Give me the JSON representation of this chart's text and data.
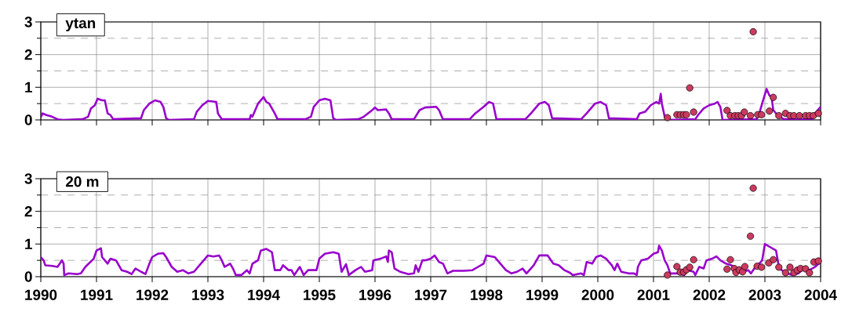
{
  "chart_data": [
    {
      "type": "line",
      "title": "ytan",
      "xlim": [
        1990,
        2004
      ],
      "xticks": [
        1990,
        1991,
        1992,
        1993,
        1994,
        1995,
        1996,
        1997,
        1998,
        1999,
        2000,
        2001,
        2002,
        2003,
        2004
      ],
      "ylim": [
        0,
        3
      ],
      "yticks": [
        0,
        {
          "value": 0.5,
          "label": null
        },
        1,
        {
          "value": 1.5,
          "label": null
        },
        2,
        {
          "value": 2.5,
          "label": null
        },
        3
      ],
      "grid": true,
      "tick_labels": "y",
      "series": [
        {
          "type": "line",
          "color": "#9900cc",
          "line_style": "solid",
          "marker": "none",
          "x": [
            1990.0,
            1990.03,
            1990.1,
            1990.2,
            1990.3,
            1990.4,
            1990.75,
            1990.85,
            1990.9,
            1990.97,
            1991.02,
            1991.1,
            1991.15,
            1991.2,
            1991.25,
            1991.3,
            1991.8,
            1991.85,
            1991.95,
            1992.05,
            1992.15,
            1992.2,
            1992.25,
            1992.3,
            1992.75,
            1992.8,
            1992.9,
            1993.0,
            1993.15,
            1993.18,
            1993.25,
            1993.75,
            1993.77,
            1993.8,
            1993.9,
            1994.0,
            1994.05,
            1994.1,
            1994.2,
            1994.25,
            1994.75,
            1994.85,
            1994.9,
            1995.0,
            1995.1,
            1995.2,
            1995.25,
            1995.3,
            1995.7,
            1995.8,
            1995.95,
            1996.0,
            1996.05,
            1996.2,
            1996.25,
            1996.3,
            1996.7,
            1996.8,
            1996.9,
            1997.1,
            1997.15,
            1997.22,
            1997.7,
            1997.8,
            1997.95,
            1998.05,
            1998.12,
            1998.18,
            1998.7,
            1998.8,
            1998.95,
            1999.05,
            1999.12,
            1999.18,
            1999.7,
            1999.8,
            1999.95,
            2000.05,
            2000.15,
            2000.2,
            2000.7,
            2000.75,
            2000.85,
            2000.95,
            2001.05,
            2001.1,
            2001.13,
            2001.15,
            2001.2,
            2001.25,
            2001.75,
            2001.8,
            2001.9,
            2002.0,
            2002.1,
            2002.15,
            2002.2,
            2002.24,
            2002.85,
            2002.9,
            2002.95,
            2003.03,
            2003.08,
            2003.12,
            2003.15,
            2003.25,
            2003.35,
            2003.85,
            2003.9,
            2004.0
          ],
          "values": [
            0.08,
            0.2,
            0.15,
            0.1,
            0.02,
            0,
            0.02,
            0.1,
            0.35,
            0.45,
            0.65,
            0.6,
            0.6,
            0.2,
            0.15,
            0.02,
            0.05,
            0.3,
            0.5,
            0.6,
            0.55,
            0.4,
            0.05,
            0,
            0.02,
            0.25,
            0.45,
            0.58,
            0.55,
            0.2,
            0.02,
            0.02,
            0.15,
            0.1,
            0.5,
            0.7,
            0.55,
            0.5,
            0.2,
            0.02,
            0.02,
            0.1,
            0.4,
            0.6,
            0.65,
            0.6,
            0.05,
            0,
            0.02,
            0.1,
            0.3,
            0.38,
            0.3,
            0.32,
            0.2,
            0.02,
            0.02,
            0.3,
            0.38,
            0.4,
            0.3,
            0.02,
            0.02,
            0.2,
            0.4,
            0.55,
            0.5,
            0.02,
            0.02,
            0.2,
            0.5,
            0.55,
            0.45,
            0.05,
            0.02,
            0.2,
            0.5,
            0.55,
            0.45,
            0.05,
            0.02,
            0.2,
            0.25,
            0.45,
            0.55,
            0.5,
            0.8,
            0.5,
            0.1,
            0,
            0.02,
            0.15,
            0.35,
            0.45,
            0.5,
            0.55,
            0.4,
            0,
            0.02,
            0.2,
            0.5,
            0.95,
            0.75,
            0.7,
            0.3,
            0.1,
            0.02,
            0.02,
            0.2,
            0.4
          ]
        },
        {
          "type": "scatter",
          "color": "#cc3a5f",
          "marker": "circle",
          "x": [
            2001.25,
            2001.42,
            2001.48,
            2001.54,
            2001.59,
            2001.65,
            2001.72,
            2002.32,
            2002.38,
            2002.46,
            2002.52,
            2002.58,
            2002.63,
            2002.74,
            2002.79,
            2002.87,
            2002.94,
            2003.08,
            2003.15,
            2003.25,
            2003.37,
            2003.45,
            2003.52,
            2003.62,
            2003.73,
            2003.8,
            2003.87,
            2003.96
          ],
          "values": [
            0.07,
            0.16,
            0.16,
            0.16,
            0.16,
            0.98,
            0.24,
            0.29,
            0.13,
            0.13,
            0.13,
            0.13,
            0.24,
            0.13,
            2.7,
            0.16,
            0.16,
            0.27,
            0.69,
            0.13,
            0.2,
            0.13,
            0.13,
            0.13,
            0.13,
            0.13,
            0.13,
            0.2
          ]
        }
      ]
    },
    {
      "type": "line",
      "title": "20 m",
      "xlim": [
        1990,
        2004
      ],
      "xticks": [
        1990,
        1991,
        1992,
        1993,
        1994,
        1995,
        1996,
        1997,
        1998,
        1999,
        2000,
        2001,
        2002,
        2003,
        2004
      ],
      "ylim": [
        0,
        3
      ],
      "yticks": [
        0,
        {
          "value": 0.5,
          "label": null
        },
        1,
        {
          "value": 1.5,
          "label": null
        },
        2,
        {
          "value": 2.5,
          "label": null
        },
        3
      ],
      "grid": true,
      "series": [
        {
          "type": "line",
          "color": "#9900cc",
          "line_style": "solid",
          "marker": "none",
          "x": [
            1990.0,
            1990.05,
            1990.08,
            1990.2,
            1990.3,
            1990.38,
            1990.41,
            1990.42,
            1990.5,
            1990.65,
            1990.72,
            1990.8,
            1990.95,
            1991.0,
            1991.08,
            1991.1,
            1991.2,
            1991.25,
            1991.35,
            1991.45,
            1991.55,
            1991.63,
            1991.7,
            1991.8,
            1991.88,
            1991.95,
            1992.0,
            1992.1,
            1992.2,
            1992.25,
            1992.35,
            1992.45,
            1992.55,
            1992.65,
            1992.75,
            1992.85,
            1992.95,
            1993.0,
            1993.1,
            1993.2,
            1993.25,
            1993.3,
            1993.4,
            1993.45,
            1993.5,
            1993.6,
            1993.7,
            1993.75,
            1993.8,
            1993.9,
            1993.95,
            1994.05,
            1994.15,
            1994.2,
            1994.3,
            1994.35,
            1994.45,
            1994.5,
            1994.55,
            1994.65,
            1994.72,
            1994.8,
            1994.95,
            1995.0,
            1995.1,
            1995.25,
            1995.35,
            1995.4,
            1995.48,
            1995.53,
            1995.65,
            1995.75,
            1995.82,
            1995.95,
            1995.97,
            1996.1,
            1996.2,
            1996.23,
            1996.25,
            1996.3,
            1996.35,
            1996.45,
            1996.6,
            1996.7,
            1996.73,
            1996.78,
            1996.85,
            1996.9,
            1997.0,
            1997.07,
            1997.15,
            1997.22,
            1997.3,
            1997.4,
            1997.6,
            1997.75,
            1997.85,
            1997.95,
            1998.0,
            1998.15,
            1998.25,
            1998.35,
            1998.45,
            1998.55,
            1998.65,
            1998.72,
            1998.85,
            1998.95,
            1999.1,
            1999.2,
            1999.3,
            1999.4,
            1999.5,
            1999.55,
            1999.7,
            1999.75,
            1999.8,
            1999.9,
            1999.97,
            2000.05,
            2000.15,
            2000.25,
            2000.3,
            2000.35,
            2000.42,
            2000.55,
            2000.65,
            2000.7,
            2000.72,
            2000.78,
            2000.9,
            2001.0,
            2001.08,
            2001.1,
            2001.15,
            2001.2,
            2001.25,
            2001.3,
            2001.45,
            2001.55,
            2001.62,
            2001.72,
            2001.75,
            2001.82,
            2001.9,
            2001.95,
            2002.05,
            2002.13,
            2002.2,
            2002.3,
            2002.4,
            2002.5,
            2002.6,
            2002.7,
            2002.75,
            2002.85,
            2002.9,
            2002.95,
            2003.0,
            2003.1,
            2003.2,
            2003.25,
            2003.3,
            2003.4,
            2003.5,
            2003.6,
            2003.7,
            2003.8,
            2003.9,
            2004.0
          ],
          "values": [
            0.6,
            0.5,
            0.35,
            0.33,
            0.3,
            0.5,
            0.4,
            0.05,
            0.1,
            0.08,
            0.1,
            0.3,
            0.55,
            0.8,
            0.87,
            0.6,
            0.4,
            0.55,
            0.5,
            0.2,
            0.15,
            0.08,
            0.25,
            0.15,
            0.08,
            0.4,
            0.6,
            0.7,
            0.72,
            0.6,
            0.3,
            0.15,
            0.2,
            0.1,
            0.15,
            0.35,
            0.55,
            0.65,
            0.62,
            0.65,
            0.5,
            0.3,
            0.4,
            0.25,
            0.05,
            0.05,
            0.2,
            0.1,
            0.4,
            0.5,
            0.8,
            0.85,
            0.75,
            0.2,
            0.2,
            0.35,
            0.2,
            0.2,
            0.05,
            0.3,
            0.05,
            0.2,
            0.2,
            0.55,
            0.7,
            0.75,
            0.7,
            0.15,
            0.38,
            0.05,
            0.2,
            0.3,
            0.15,
            0.2,
            0.5,
            0.55,
            0.62,
            0.45,
            0.8,
            0.75,
            0.25,
            0.15,
            0.08,
            0.1,
            0.35,
            0.15,
            0.5,
            0.5,
            0.55,
            0.65,
            0.45,
            0.4,
            0.1,
            0.18,
            0.18,
            0.2,
            0.3,
            0.4,
            0.65,
            0.6,
            0.4,
            0.2,
            0.1,
            0.15,
            0.25,
            0.1,
            0.35,
            0.65,
            0.65,
            0.4,
            0.35,
            0.2,
            0.12,
            0.05,
            0.1,
            0.05,
            0.45,
            0.4,
            0.6,
            0.65,
            0.55,
            0.35,
            0.2,
            0.4,
            0.15,
            0.1,
            0.1,
            0.05,
            0.3,
            0.5,
            0.55,
            0.7,
            0.75,
            0.95,
            0.8,
            0.5,
            0.35,
            0.1,
            0.1,
            0.05,
            0.2,
            0.15,
            0.05,
            0.3,
            0.25,
            0.5,
            0.55,
            0.62,
            0.5,
            0.4,
            0.35,
            0.2,
            0.15,
            0.2,
            0.1,
            0.35,
            0.4,
            0.5,
            1.0,
            0.9,
            0.8,
            0.3,
            0.2,
            0.1,
            0.05,
            0.1,
            0.25,
            0.2,
            0.3,
            0.45
          ]
        },
        {
          "type": "scatter",
          "color": "#cc3a5f",
          "marker": "circle",
          "x": [
            2001.25,
            2001.42,
            2001.48,
            2001.54,
            2001.59,
            2001.65,
            2001.72,
            2002.32,
            2002.38,
            2002.45,
            2002.48,
            2002.54,
            2002.6,
            2002.64,
            2002.74,
            2002.79,
            2002.86,
            2002.94,
            2003.07,
            2003.15,
            2003.25,
            2003.37,
            2003.45,
            2003.52,
            2003.58,
            2003.64,
            2003.73,
            2003.8,
            2003.88,
            2003.96
          ],
          "values": [
            0.05,
            0.31,
            0.14,
            0.14,
            0.21,
            0.29,
            0.52,
            0.23,
            0.52,
            0.25,
            0.13,
            0.21,
            0.15,
            0.31,
            1.24,
            2.71,
            0.32,
            0.29,
            0.42,
            0.52,
            0.29,
            0.12,
            0.29,
            0.12,
            0.2,
            0.25,
            0.24,
            0.12,
            0.45,
            0.48
          ]
        }
      ]
    }
  ]
}
